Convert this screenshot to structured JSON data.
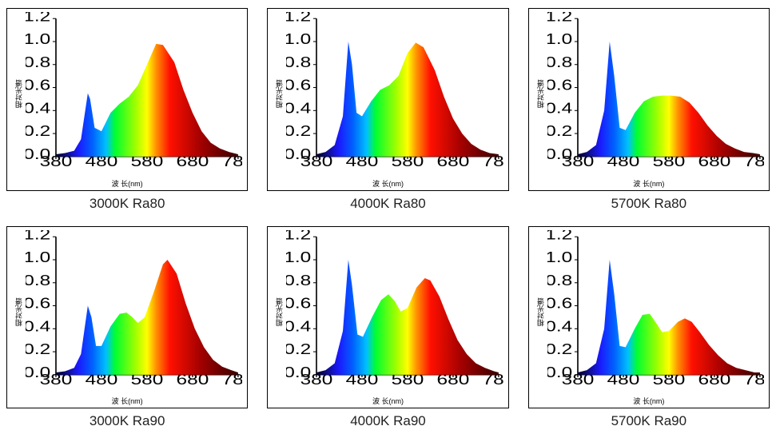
{
  "global": {
    "background_color": "#ffffff",
    "panel_border_color": "#000000",
    "axis_color": "#000000",
    "tick_fontsize": 9,
    "caption_fontsize": 17,
    "axis_label_fontsize": 9,
    "x_label": "波 长(nm)",
    "y_label": "相对光谱",
    "xlim": [
      380,
      780
    ],
    "ylim": [
      0,
      1.2
    ],
    "xtick_step": 100,
    "ytick_step": 0.2,
    "spectrum_gradient": [
      {
        "nm": 380,
        "color": "#020024"
      },
      {
        "nm": 430,
        "color": "#1b1bff"
      },
      {
        "nm": 460,
        "color": "#0060ff"
      },
      {
        "nm": 490,
        "color": "#00c0ff"
      },
      {
        "nm": 510,
        "color": "#00ff30"
      },
      {
        "nm": 555,
        "color": "#a0ff00"
      },
      {
        "nm": 580,
        "color": "#ffff00"
      },
      {
        "nm": 600,
        "color": "#ff9000"
      },
      {
        "nm": 630,
        "color": "#ff1000"
      },
      {
        "nm": 700,
        "color": "#a00000"
      },
      {
        "nm": 780,
        "color": "#3a0000"
      }
    ]
  },
  "panels": [
    {
      "id": "p0",
      "caption": "3000K  Ra80",
      "type": "area-spectrum",
      "curve": [
        [
          380,
          0.02
        ],
        [
          400,
          0.03
        ],
        [
          420,
          0.05
        ],
        [
          435,
          0.15
        ],
        [
          450,
          0.55
        ],
        [
          455,
          0.5
        ],
        [
          465,
          0.25
        ],
        [
          480,
          0.22
        ],
        [
          500,
          0.38
        ],
        [
          520,
          0.46
        ],
        [
          540,
          0.52
        ],
        [
          560,
          0.62
        ],
        [
          580,
          0.8
        ],
        [
          600,
          0.98
        ],
        [
          615,
          0.97
        ],
        [
          640,
          0.82
        ],
        [
          660,
          0.58
        ],
        [
          680,
          0.38
        ],
        [
          700,
          0.22
        ],
        [
          720,
          0.12
        ],
        [
          740,
          0.07
        ],
        [
          760,
          0.04
        ],
        [
          780,
          0.02
        ]
      ]
    },
    {
      "id": "p1",
      "caption": "4000K  Ra80",
      "type": "area-spectrum",
      "curve": [
        [
          380,
          0.02
        ],
        [
          400,
          0.04
        ],
        [
          420,
          0.1
        ],
        [
          438,
          0.35
        ],
        [
          450,
          1.0
        ],
        [
          458,
          0.8
        ],
        [
          468,
          0.38
        ],
        [
          480,
          0.35
        ],
        [
          500,
          0.48
        ],
        [
          520,
          0.58
        ],
        [
          540,
          0.62
        ],
        [
          560,
          0.7
        ],
        [
          580,
          0.9
        ],
        [
          598,
          0.99
        ],
        [
          615,
          0.95
        ],
        [
          640,
          0.75
        ],
        [
          660,
          0.52
        ],
        [
          680,
          0.33
        ],
        [
          700,
          0.2
        ],
        [
          720,
          0.11
        ],
        [
          740,
          0.06
        ],
        [
          760,
          0.03
        ],
        [
          780,
          0.02
        ]
      ]
    },
    {
      "id": "p2",
      "caption": "5700K  Ra80",
      "type": "area-spectrum",
      "curve": [
        [
          380,
          0.02
        ],
        [
          400,
          0.04
        ],
        [
          420,
          0.1
        ],
        [
          438,
          0.4
        ],
        [
          450,
          1.0
        ],
        [
          460,
          0.7
        ],
        [
          472,
          0.25
        ],
        [
          485,
          0.23
        ],
        [
          505,
          0.38
        ],
        [
          525,
          0.48
        ],
        [
          545,
          0.52
        ],
        [
          565,
          0.53
        ],
        [
          585,
          0.53
        ],
        [
          605,
          0.52
        ],
        [
          625,
          0.47
        ],
        [
          645,
          0.38
        ],
        [
          665,
          0.27
        ],
        [
          685,
          0.18
        ],
        [
          705,
          0.11
        ],
        [
          725,
          0.07
        ],
        [
          745,
          0.04
        ],
        [
          765,
          0.03
        ],
        [
          780,
          0.02
        ]
      ]
    },
    {
      "id": "p3",
      "caption": "3000K  Ra90",
      "type": "area-spectrum",
      "curve": [
        [
          380,
          0.02
        ],
        [
          400,
          0.03
        ],
        [
          420,
          0.06
        ],
        [
          435,
          0.18
        ],
        [
          450,
          0.6
        ],
        [
          458,
          0.5
        ],
        [
          468,
          0.25
        ],
        [
          480,
          0.25
        ],
        [
          500,
          0.42
        ],
        [
          520,
          0.53
        ],
        [
          535,
          0.54
        ],
        [
          548,
          0.5
        ],
        [
          560,
          0.45
        ],
        [
          575,
          0.5
        ],
        [
          595,
          0.72
        ],
        [
          615,
          0.96
        ],
        [
          625,
          1.0
        ],
        [
          645,
          0.88
        ],
        [
          665,
          0.62
        ],
        [
          685,
          0.4
        ],
        [
          705,
          0.24
        ],
        [
          725,
          0.13
        ],
        [
          745,
          0.07
        ],
        [
          765,
          0.04
        ],
        [
          780,
          0.02
        ]
      ]
    },
    {
      "id": "p4",
      "caption": "4000K  Ra90",
      "type": "area-spectrum",
      "curve": [
        [
          380,
          0.02
        ],
        [
          400,
          0.04
        ],
        [
          420,
          0.1
        ],
        [
          438,
          0.38
        ],
        [
          450,
          1.0
        ],
        [
          458,
          0.78
        ],
        [
          470,
          0.35
        ],
        [
          482,
          0.33
        ],
        [
          502,
          0.5
        ],
        [
          522,
          0.65
        ],
        [
          538,
          0.7
        ],
        [
          552,
          0.64
        ],
        [
          565,
          0.55
        ],
        [
          580,
          0.58
        ],
        [
          600,
          0.76
        ],
        [
          618,
          0.84
        ],
        [
          630,
          0.82
        ],
        [
          650,
          0.68
        ],
        [
          670,
          0.48
        ],
        [
          690,
          0.3
        ],
        [
          710,
          0.18
        ],
        [
          730,
          0.1
        ],
        [
          750,
          0.06
        ],
        [
          770,
          0.03
        ],
        [
          780,
          0.02
        ]
      ]
    },
    {
      "id": "p5",
      "caption": "5700K  Ra90",
      "type": "area-spectrum",
      "curve": [
        [
          380,
          0.02
        ],
        [
          400,
          0.04
        ],
        [
          420,
          0.1
        ],
        [
          438,
          0.4
        ],
        [
          450,
          1.0
        ],
        [
          460,
          0.7
        ],
        [
          472,
          0.25
        ],
        [
          485,
          0.24
        ],
        [
          505,
          0.4
        ],
        [
          522,
          0.52
        ],
        [
          538,
          0.53
        ],
        [
          552,
          0.45
        ],
        [
          565,
          0.37
        ],
        [
          580,
          0.38
        ],
        [
          600,
          0.46
        ],
        [
          615,
          0.49
        ],
        [
          630,
          0.46
        ],
        [
          648,
          0.37
        ],
        [
          668,
          0.26
        ],
        [
          688,
          0.17
        ],
        [
          708,
          0.1
        ],
        [
          728,
          0.06
        ],
        [
          748,
          0.04
        ],
        [
          768,
          0.02
        ],
        [
          780,
          0.02
        ]
      ]
    }
  ]
}
